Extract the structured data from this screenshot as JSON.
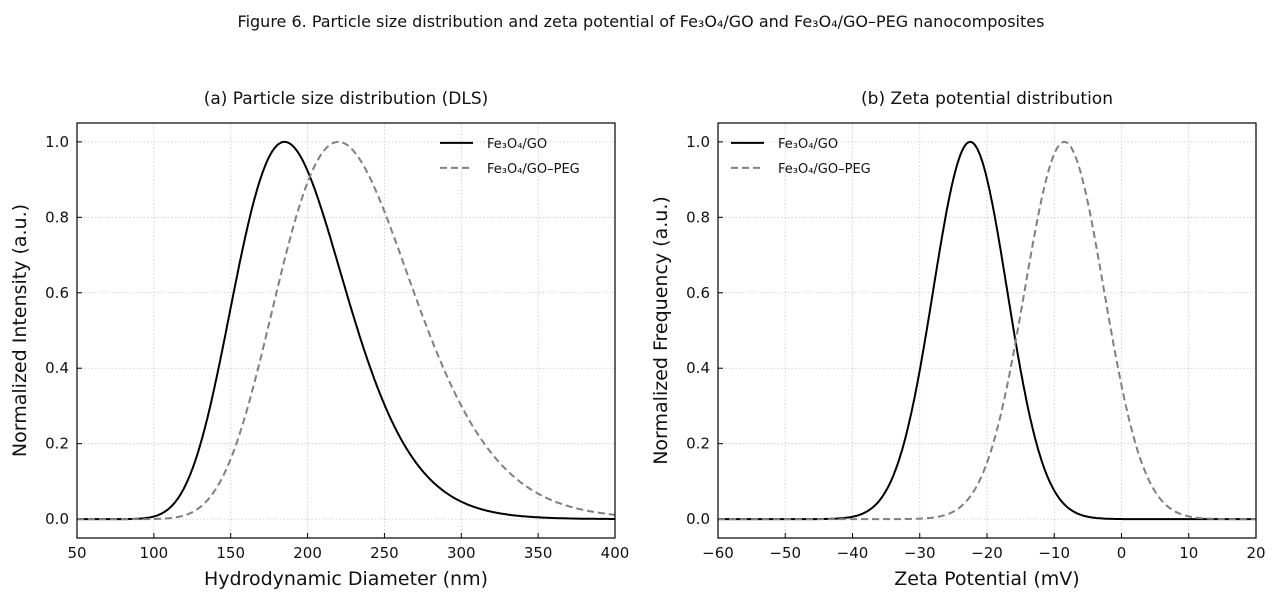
{
  "figure_title": "Figure 6. Particle size distribution and zeta potential of Fe₃O₄/GO and Fe₃O₄/GO–PEG nanocomposites",
  "chart_data": [
    {
      "type": "line",
      "title": "(a) Particle size distribution (DLS)",
      "xlabel": "Hydrodynamic Diameter (nm)",
      "ylabel": "Normalized Intensity (a.u.)",
      "xlim": [
        50,
        400
      ],
      "ylim": [
        -0.05,
        1.05
      ],
      "xticks": [
        "50",
        "100",
        "150",
        "200",
        "250",
        "300",
        "350",
        "400"
      ],
      "xtick_values": [
        50,
        100,
        150,
        200,
        250,
        300,
        350,
        400
      ],
      "yticks": [
        "0.0",
        "0.2",
        "0.4",
        "0.6",
        "0.8",
        "1.0"
      ],
      "ytick_values": [
        0,
        0.2,
        0.4,
        0.6,
        0.8,
        1.0
      ],
      "grid": true,
      "legend_position": "top-right",
      "series": [
        {
          "name": "Fe₃O₄/GO",
          "model": "lognormal",
          "peak": 185,
          "log_sigma": 0.195,
          "color": "#000000",
          "style": "solid"
        },
        {
          "name": "Fe₃O₄/GO–PEG",
          "model": "lognormal",
          "peak": 220,
          "log_sigma": 0.2,
          "color": "#808080",
          "style": "dashed"
        }
      ]
    },
    {
      "type": "line",
      "title": "(b) Zeta potential distribution",
      "xlabel": "Zeta Potential (mV)",
      "ylabel": "Normalized Frequency (a.u.)",
      "xlim": [
        -60,
        20
      ],
      "ylim": [
        -0.05,
        1.05
      ],
      "xticks": [
        "−60",
        "−50",
        "−40",
        "−30",
        "−20",
        "−10",
        "0",
        "10",
        "20"
      ],
      "xtick_values": [
        -60,
        -50,
        -40,
        -30,
        -20,
        -10,
        0,
        10,
        20
      ],
      "yticks": [
        "0.0",
        "0.2",
        "0.4",
        "0.6",
        "0.8",
        "1.0"
      ],
      "ytick_values": [
        0,
        0.2,
        0.4,
        0.6,
        0.8,
        1.0
      ],
      "grid": true,
      "legend_position": "top-left",
      "series": [
        {
          "name": "Fe₃O₄/GO",
          "model": "gaussian",
          "peak": -22.5,
          "sigma": 5.5,
          "color": "#000000",
          "style": "solid"
        },
        {
          "name": "Fe₃O₄/GO–PEG",
          "model": "gaussian",
          "peak": -8.5,
          "sigma": 5.9,
          "color": "#808080",
          "style": "dashed"
        }
      ]
    }
  ]
}
